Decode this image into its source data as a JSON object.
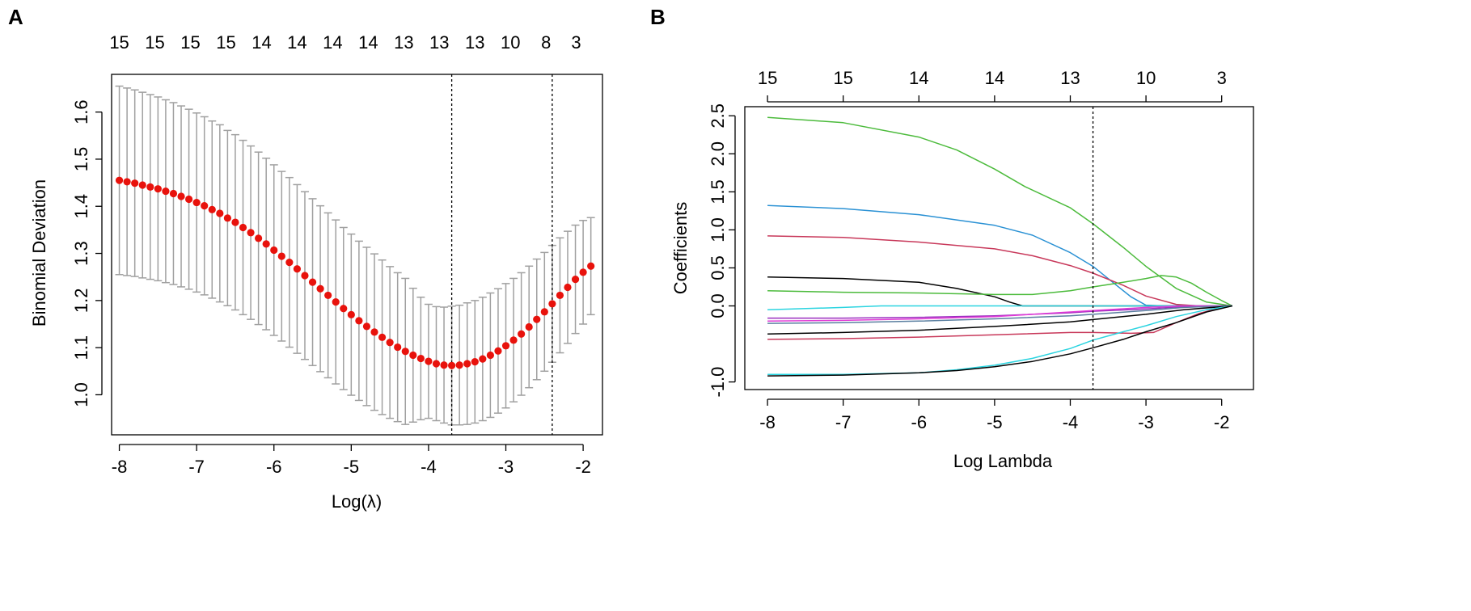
{
  "panels": {
    "a": {
      "label": "A"
    },
    "b": {
      "label": "B"
    }
  },
  "chart_data": [
    {
      "panel": "A",
      "type": "scatter",
      "xlabel": "Log(λ)",
      "ylabel": "Binomial Deviation",
      "xlim": [
        -8.1,
        -1.75
      ],
      "ylim": [
        0.915,
        1.68
      ],
      "x_ticks": [
        -8,
        -7,
        -6,
        -5,
        -4,
        -3,
        -2
      ],
      "x_tick_labels": [
        "-8",
        "-7",
        "-6",
        "-5",
        "-4",
        "-3",
        "-2"
      ],
      "y_ticks": [
        1.0,
        1.1,
        1.2,
        1.3,
        1.4,
        1.5,
        1.6
      ],
      "y_tick_labels": [
        "1.0",
        "1.1",
        "1.2",
        "1.3",
        "1.4",
        "1.5",
        "1.6"
      ],
      "top_axis": {
        "positions": [
          -8.0,
          -7.54,
          -7.08,
          -6.62,
          -6.16,
          -5.7,
          -5.24,
          -4.78,
          -4.32,
          -3.86,
          -3.4,
          -2.94,
          -2.48,
          -2.09
        ],
        "labels": [
          "15",
          "15",
          "15",
          "15",
          "14",
          "14",
          "14",
          "14",
          "13",
          "13",
          "13",
          "10",
          "8",
          "3"
        ]
      },
      "reference_lines": [
        -3.7,
        -2.4
      ],
      "series": [
        {
          "name": "Cross-validated binomial deviance",
          "color": "#e8120c",
          "error_bar_color": "#a0a0a0",
          "x": [
            -8.0,
            -7.9,
            -7.8,
            -7.7,
            -7.6,
            -7.5,
            -7.4,
            -7.3,
            -7.2,
            -7.1,
            -7.0,
            -6.9,
            -6.8,
            -6.7,
            -6.6,
            -6.5,
            -6.4,
            -6.3,
            -6.2,
            -6.1,
            -6.0,
            -5.9,
            -5.8,
            -5.7,
            -5.6,
            -5.5,
            -5.4,
            -5.3,
            -5.2,
            -5.1,
            -5.0,
            -4.9,
            -4.8,
            -4.7,
            -4.6,
            -4.5,
            -4.4,
            -4.3,
            -4.2,
            -4.1,
            -4.0,
            -3.9,
            -3.8,
            -3.7,
            -3.6,
            -3.5,
            -3.4,
            -3.3,
            -3.2,
            -3.1,
            -3.0,
            -2.9,
            -2.8,
            -2.7,
            -2.6,
            -2.5,
            -2.4,
            -2.3,
            -2.2,
            -2.1,
            -2.0,
            -1.9
          ],
          "y": [
            1.455,
            1.452,
            1.449,
            1.445,
            1.441,
            1.437,
            1.432,
            1.427,
            1.421,
            1.415,
            1.408,
            1.401,
            1.393,
            1.385,
            1.375,
            1.366,
            1.355,
            1.344,
            1.332,
            1.32,
            1.307,
            1.294,
            1.281,
            1.267,
            1.253,
            1.239,
            1.225,
            1.211,
            1.197,
            1.183,
            1.17,
            1.157,
            1.145,
            1.133,
            1.122,
            1.111,
            1.101,
            1.092,
            1.084,
            1.077,
            1.071,
            1.066,
            1.063,
            1.062,
            1.063,
            1.066,
            1.07,
            1.076,
            1.084,
            1.093,
            1.104,
            1.116,
            1.129,
            1.144,
            1.16,
            1.176,
            1.193,
            1.211,
            1.228,
            1.245,
            1.26,
            1.273
          ],
          "lower": [
            1.255,
            1.253,
            1.251,
            1.248,
            1.245,
            1.242,
            1.238,
            1.234,
            1.229,
            1.224,
            1.218,
            1.212,
            1.205,
            1.197,
            1.189,
            1.18,
            1.17,
            1.16,
            1.149,
            1.138,
            1.126,
            1.114,
            1.101,
            1.088,
            1.075,
            1.062,
            1.049,
            1.036,
            1.023,
            1.011,
            0.999,
            0.988,
            0.977,
            0.967,
            0.958,
            0.95,
            0.943,
            0.937,
            0.942,
            0.947,
            0.95,
            0.945,
            0.94,
            0.936,
            0.936,
            0.937,
            0.94,
            0.945,
            0.952,
            0.961,
            0.972,
            0.985,
            0.999,
            1.015,
            1.032,
            1.05,
            1.069,
            1.089,
            1.109,
            1.13,
            1.15,
            1.17
          ],
          "upper": [
            1.655,
            1.651,
            1.647,
            1.642,
            1.637,
            1.632,
            1.626,
            1.62,
            1.613,
            1.606,
            1.598,
            1.59,
            1.581,
            1.573,
            1.561,
            1.552,
            1.54,
            1.528,
            1.515,
            1.502,
            1.488,
            1.474,
            1.461,
            1.446,
            1.431,
            1.416,
            1.401,
            1.386,
            1.371,
            1.355,
            1.341,
            1.326,
            1.313,
            1.299,
            1.286,
            1.272,
            1.259,
            1.247,
            1.226,
            1.207,
            1.192,
            1.187,
            1.186,
            1.188,
            1.19,
            1.195,
            1.2,
            1.207,
            1.216,
            1.225,
            1.236,
            1.247,
            1.259,
            1.273,
            1.288,
            1.302,
            1.317,
            1.333,
            1.347,
            1.36,
            1.37,
            1.376
          ]
        }
      ]
    },
    {
      "panel": "B",
      "type": "line",
      "xlabel": "Log Lambda",
      "ylabel": "Coefficients",
      "xlim": [
        -8.3,
        -1.58
      ],
      "ylim": [
        -1.1,
        2.62
      ],
      "x_ticks": [
        -8,
        -7,
        -6,
        -5,
        -4,
        -3,
        -2
      ],
      "x_tick_labels": [
        "-8",
        "-7",
        "-6",
        "-5",
        "-4",
        "-3",
        "-2"
      ],
      "y_ticks": [
        -1.0,
        0.0,
        0.5,
        1.0,
        1.5,
        2.0,
        2.5
      ],
      "y_tick_labels": [
        "-1.0",
        "0.0",
        "0.5",
        "1.0",
        "1.5",
        "2.0",
        "2.5"
      ],
      "top_axis": {
        "positions": [
          -8,
          -7,
          -6,
          -5,
          -4,
          -3,
          -2
        ],
        "labels": [
          "15",
          "15",
          "14",
          "14",
          "13",
          "10",
          "3"
        ]
      },
      "reference_lines": [
        -3.7
      ],
      "series": [
        {
          "name": "green-1",
          "color": "#4cbb3c",
          "x": [
            -8,
            -7,
            -6,
            -5.5,
            -5,
            -4.6,
            -4,
            -3.7,
            -3.3,
            -3,
            -2.6,
            -2.2,
            -1.86
          ],
          "y": [
            2.48,
            2.41,
            2.22,
            2.05,
            1.8,
            1.57,
            1.29,
            1.08,
            0.77,
            0.52,
            0.23,
            0.05,
            0.0
          ]
        },
        {
          "name": "blue",
          "color": "#2a91d4",
          "x": [
            -8,
            -7,
            -6,
            -5,
            -4.5,
            -4,
            -3.7,
            -3.4,
            -3.2,
            -3.0,
            -2.8,
            -1.86
          ],
          "y": [
            1.32,
            1.28,
            1.2,
            1.06,
            0.93,
            0.7,
            0.52,
            0.28,
            0.12,
            0.01,
            0.0,
            0.0
          ]
        },
        {
          "name": "red-1",
          "color": "#c8385a",
          "x": [
            -8,
            -7,
            -6,
            -5,
            -4.5,
            -4,
            -3.7,
            -3.3,
            -3.0,
            -2.6,
            -2.3,
            -1.86
          ],
          "y": [
            0.92,
            0.9,
            0.84,
            0.75,
            0.66,
            0.53,
            0.43,
            0.27,
            0.13,
            0.02,
            0.0,
            0.0
          ]
        },
        {
          "name": "black-1",
          "color": "#000000",
          "x": [
            -8,
            -7,
            -6,
            -5.5,
            -5,
            -4.8,
            -4.63,
            -1.86
          ],
          "y": [
            0.38,
            0.36,
            0.31,
            0.23,
            0.12,
            0.05,
            0.0,
            0.0
          ]
        },
        {
          "name": "green-2",
          "color": "#4cbb3c",
          "x": [
            -8,
            -7,
            -6,
            -5,
            -4.5,
            -4,
            -3.7,
            -3.3,
            -3.0,
            -2.8,
            -2.6,
            -2.4,
            -2.2,
            -2.0,
            -1.86
          ],
          "y": [
            0.2,
            0.18,
            0.17,
            0.15,
            0.15,
            0.2,
            0.25,
            0.31,
            0.36,
            0.4,
            0.38,
            0.3,
            0.18,
            0.07,
            0.0
          ]
        },
        {
          "name": "cyan-1",
          "color": "#2bd4e0",
          "x": [
            -8,
            -7,
            -6.5,
            -6,
            -5,
            -4,
            -1.86
          ],
          "y": [
            -0.05,
            -0.02,
            0.0,
            0.0,
            0.0,
            0.0,
            0.0
          ]
        },
        {
          "name": "purple",
          "color": "#9b2fbf",
          "x": [
            -8,
            -7,
            -6,
            -5,
            -4,
            -3.7,
            -3,
            -2.5,
            -1.86
          ],
          "y": [
            -0.16,
            -0.16,
            -0.15,
            -0.13,
            -0.09,
            -0.07,
            -0.04,
            -0.01,
            0.0
          ]
        },
        {
          "name": "magenta",
          "color": "#e03ad6",
          "x": [
            -8,
            -7,
            -6,
            -5,
            -4,
            -3.7,
            -3,
            -2.5,
            -1.86
          ],
          "y": [
            -0.2,
            -0.19,
            -0.17,
            -0.14,
            -0.08,
            -0.06,
            -0.02,
            0.0,
            0.0
          ]
        },
        {
          "name": "gray-blue",
          "color": "#5a7fa0",
          "x": [
            -8,
            -7,
            -6,
            -5,
            -4,
            -3.7,
            -3,
            -2.5,
            -1.86
          ],
          "y": [
            -0.23,
            -0.22,
            -0.2,
            -0.17,
            -0.13,
            -0.11,
            -0.06,
            -0.02,
            0.0
          ]
        },
        {
          "name": "black-2",
          "color": "#000000",
          "x": [
            -8,
            -7,
            -6,
            -5,
            -4,
            -3.7,
            -3,
            -2.5,
            -1.86
          ],
          "y": [
            -0.37,
            -0.35,
            -0.32,
            -0.27,
            -0.21,
            -0.18,
            -0.11,
            -0.05,
            0.0
          ]
        },
        {
          "name": "red-2",
          "color": "#c8385a",
          "x": [
            -8,
            -7,
            -6,
            -5,
            -4,
            -3.7,
            -3.2,
            -2.9,
            -2.6,
            -2.3,
            -2.0,
            -1.86
          ],
          "y": [
            -0.44,
            -0.43,
            -0.41,
            -0.38,
            -0.35,
            -0.35,
            -0.36,
            -0.35,
            -0.22,
            -0.1,
            -0.02,
            0.0
          ]
        },
        {
          "name": "cyan-2",
          "color": "#2bd4e0",
          "x": [
            -8,
            -7,
            -6,
            -5.5,
            -5,
            -4.5,
            -4,
            -3.7,
            -3.3,
            -3.0,
            -2.6,
            -2.2,
            -1.86
          ],
          "y": [
            -0.9,
            -0.9,
            -0.88,
            -0.84,
            -0.78,
            -0.69,
            -0.56,
            -0.45,
            -0.34,
            -0.26,
            -0.14,
            -0.05,
            0.0
          ]
        },
        {
          "name": "black-3",
          "color": "#000000",
          "x": [
            -8,
            -7,
            -6,
            -5.5,
            -5,
            -4.5,
            -4,
            -3.7,
            -3.3,
            -3.0,
            -2.6,
            -2.2,
            -1.86
          ],
          "y": [
            -0.92,
            -0.91,
            -0.88,
            -0.85,
            -0.8,
            -0.73,
            -0.63,
            -0.55,
            -0.44,
            -0.34,
            -0.22,
            -0.08,
            0.0
          ]
        }
      ]
    }
  ]
}
